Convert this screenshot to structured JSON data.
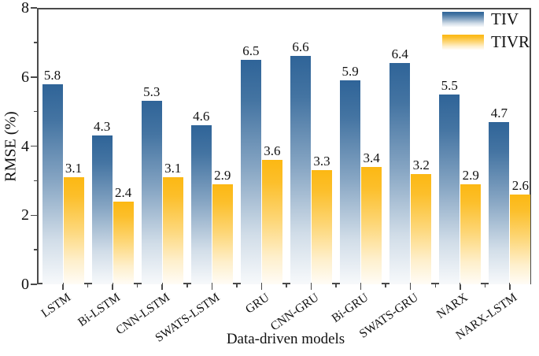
{
  "figure": {
    "background": "#ffffff"
  },
  "colors": {
    "frame": "#4a4a4a",
    "text": "#111111",
    "tiv_bar_top": "#2f6498",
    "tivr_bar_top": "#fcb813"
  },
  "legend": {
    "position": "upper right",
    "items": [
      {
        "label": "TIV"
      },
      {
        "label": "TIVR"
      }
    ]
  },
  "chart_data": {
    "type": "bar",
    "title": "",
    "xlabel": "Data-driven models",
    "ylabel": "RMSE (%)",
    "categories": [
      "LSTM",
      "Bi-LSTM",
      "CNN-LSTM",
      "SWATS-LSTM",
      "GRU",
      "CNN-GRU",
      "Bi-GRU",
      "SWATS-GRU",
      "NARX",
      "NARX-LSTM"
    ],
    "series": [
      {
        "name": "TIV",
        "color": "#2f6498",
        "values": [
          5.8,
          4.3,
          5.3,
          4.6,
          6.5,
          6.6,
          5.9,
          6.4,
          5.5,
          4.7
        ]
      },
      {
        "name": "TIVR",
        "color": "#fcb813",
        "values": [
          3.1,
          2.4,
          3.1,
          2.9,
          3.6,
          3.3,
          3.4,
          3.2,
          2.9,
          2.6
        ]
      }
    ],
    "bar_value_labels": [
      [
        "5.8",
        "4.3",
        "5.3",
        "4.6",
        "6.5",
        "6.6",
        "5.9",
        "6.4",
        "5.5",
        "4.7"
      ],
      [
        "3.1",
        "2.4",
        "3.1",
        "2.9",
        "3.6",
        "3.3",
        "3.4",
        "3.2",
        "2.9",
        "2.6"
      ]
    ],
    "ylim": [
      0,
      8
    ],
    "yticks_major": [
      0,
      2,
      4,
      6,
      8
    ],
    "yticks_minor": [
      1,
      3,
      5,
      7
    ],
    "grid": false,
    "legend_position": "upper right",
    "bar_gradient": "color fades to white toward baseline"
  }
}
